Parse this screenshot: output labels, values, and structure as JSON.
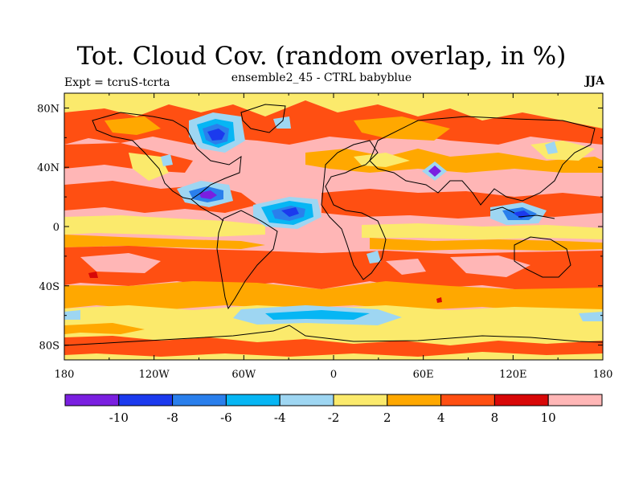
{
  "map": {
    "title": "Tot. Cloud Cov. (random overlap, in %)",
    "subtitle": "ensemble2_45 - CTRL babyblue",
    "left_label": "Expt = tcruS-tcrta",
    "right_label": "JJA",
    "lat_ticks": [
      "80N",
      "40N",
      "0",
      "40S",
      "80S"
    ],
    "lat_values": [
      80,
      40,
      0,
      -40,
      -80
    ],
    "lon_ticks": [
      "180",
      "120W",
      "60W",
      "0",
      "60E",
      "120E",
      "180"
    ],
    "lon_values": [
      -180,
      -120,
      -60,
      0,
      60,
      120,
      180
    ]
  },
  "colors": {
    "background": "#ffb6b6",
    "levels": [
      "#7a1fe0",
      "#1b3aee",
      "#2a7fec",
      "#06b6f4",
      "#9ed6f2",
      "#fbea6c",
      "#ffa800",
      "#ff4f12",
      "#d80808",
      "#ffb6b6"
    ]
  },
  "legend": {
    "labels": [
      "-10",
      "-8",
      "-6",
      "-4",
      "-2",
      "2",
      "4",
      "8",
      "10"
    ]
  }
}
